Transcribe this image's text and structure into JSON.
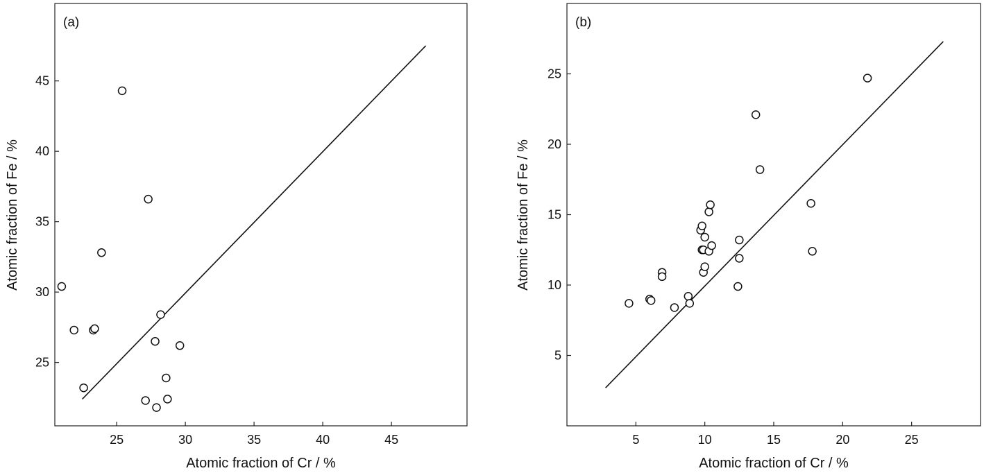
{
  "chart_data": [
    {
      "type": "scatter",
      "panel_label": "(a)",
      "title": "",
      "xlabel": "Atomic fraction of Cr / %",
      "ylabel": "Atomic fraction of Fe / %",
      "xlim": [
        20.5,
        50.5
      ],
      "ylim": [
        20.5,
        50.5
      ],
      "xticks": [
        25,
        30,
        35,
        40,
        45
      ],
      "yticks": [
        25,
        30,
        35,
        40,
        45
      ],
      "grid": false,
      "reference_line": {
        "x": [
          22.5,
          47.5
        ],
        "y": [
          22.4,
          47.5
        ]
      },
      "points": [
        {
          "x": 21.0,
          "y": 30.4
        },
        {
          "x": 21.9,
          "y": 27.3
        },
        {
          "x": 22.6,
          "y": 23.2
        },
        {
          "x": 23.3,
          "y": 27.3
        },
        {
          "x": 23.4,
          "y": 27.4
        },
        {
          "x": 23.9,
          "y": 32.8
        },
        {
          "x": 25.4,
          "y": 44.3
        },
        {
          "x": 27.1,
          "y": 22.3
        },
        {
          "x": 27.3,
          "y": 36.6
        },
        {
          "x": 27.8,
          "y": 26.5
        },
        {
          "x": 27.9,
          "y": 21.8
        },
        {
          "x": 28.2,
          "y": 28.4
        },
        {
          "x": 28.6,
          "y": 23.9
        },
        {
          "x": 28.7,
          "y": 22.4
        },
        {
          "x": 29.6,
          "y": 26.2
        }
      ]
    },
    {
      "type": "scatter",
      "panel_label": "(b)",
      "title": "",
      "xlabel": "Atomic fraction of Cr / %",
      "ylabel": "Atomic fraction of Fe / %",
      "xlim": [
        0,
        30
      ],
      "ylim": [
        0,
        30
      ],
      "xticks": [
        5,
        10,
        15,
        20,
        25
      ],
      "yticks": [
        5,
        10,
        15,
        20,
        25
      ],
      "grid": false,
      "reference_line": {
        "x": [
          2.8,
          27.3
        ],
        "y": [
          2.7,
          27.3
        ]
      },
      "points": [
        {
          "x": 4.5,
          "y": 8.7
        },
        {
          "x": 6.0,
          "y": 9.0
        },
        {
          "x": 6.1,
          "y": 8.9
        },
        {
          "x": 6.9,
          "y": 10.9
        },
        {
          "x": 6.9,
          "y": 10.6
        },
        {
          "x": 7.8,
          "y": 8.4
        },
        {
          "x": 8.8,
          "y": 9.2
        },
        {
          "x": 8.9,
          "y": 8.7
        },
        {
          "x": 9.7,
          "y": 13.9
        },
        {
          "x": 9.8,
          "y": 14.2
        },
        {
          "x": 9.8,
          "y": 12.5
        },
        {
          "x": 9.9,
          "y": 12.5
        },
        {
          "x": 9.9,
          "y": 10.9
        },
        {
          "x": 10.0,
          "y": 13.4
        },
        {
          "x": 10.0,
          "y": 11.3
        },
        {
          "x": 10.3,
          "y": 15.2
        },
        {
          "x": 10.3,
          "y": 12.4
        },
        {
          "x": 10.4,
          "y": 15.7
        },
        {
          "x": 10.5,
          "y": 12.8
        },
        {
          "x": 12.4,
          "y": 9.9
        },
        {
          "x": 12.5,
          "y": 13.2
        },
        {
          "x": 12.5,
          "y": 11.9
        },
        {
          "x": 13.7,
          "y": 22.1
        },
        {
          "x": 14.0,
          "y": 18.2
        },
        {
          "x": 17.7,
          "y": 15.8
        },
        {
          "x": 17.8,
          "y": 12.4
        },
        {
          "x": 21.8,
          "y": 24.7
        }
      ]
    }
  ]
}
